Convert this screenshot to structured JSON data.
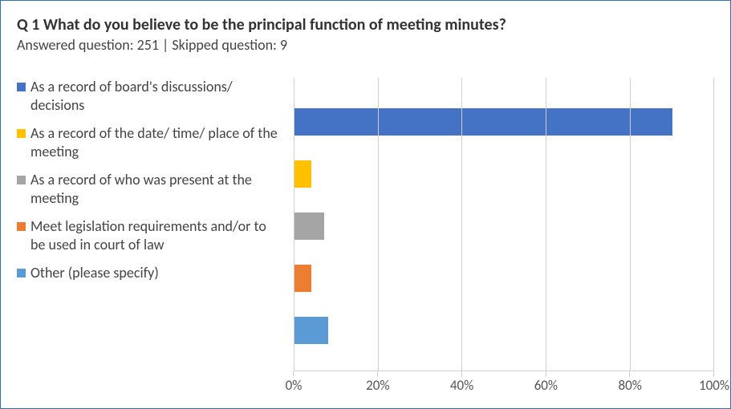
{
  "header": {
    "title": "Q 1 What do you believe to be the principal function of meeting minutes?",
    "subtitle": "Answered question: 251 | Skipped question: 9",
    "title_fontsize": 20,
    "subtitle_fontsize": 18
  },
  "chart": {
    "type": "bar",
    "orientation": "horizontal",
    "xlim": [
      0,
      100
    ],
    "xtick_step": 20,
    "x_ticks": [
      0,
      20,
      40,
      60,
      80,
      100
    ],
    "x_tick_labels": [
      "0%",
      "20%",
      "40%",
      "60%",
      "80%",
      "100%"
    ],
    "grid_color": "#cfcfcf",
    "background_color": "#ffffff",
    "label_fontsize": 18,
    "tick_fontsize": 17,
    "series": [
      {
        "label": "As a record of board's discussions/ decisions",
        "value": 90,
        "color": "#4472c4"
      },
      {
        "label": "As a record of the date/ time/ place of the meeting",
        "value": 4,
        "color": "#ffc000"
      },
      {
        "label": "As a record of who was present at the meeting",
        "value": 7,
        "color": "#a5a5a5"
      },
      {
        "label": "Meet legislation requirements and/or to be used in court of law",
        "value": 4,
        "color": "#ed7d31"
      },
      {
        "label": "Other (please specify)",
        "value": 8,
        "color": "#5b9bd5"
      }
    ]
  }
}
